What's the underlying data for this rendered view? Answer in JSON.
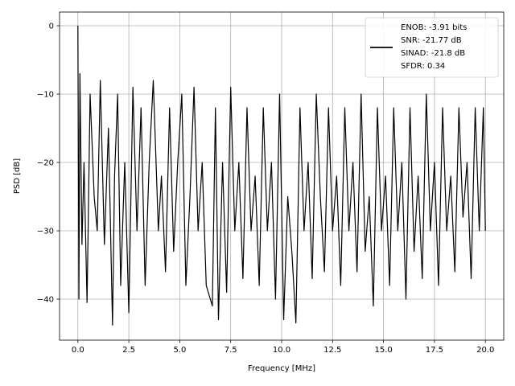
{
  "chart_data": {
    "type": "line",
    "title": "",
    "xlabel": "Frequency [MHz]",
    "ylabel": "PSD [dB]",
    "xlim": [
      -0.9,
      20.9
    ],
    "ylim": [
      -46,
      2
    ],
    "xticks": [
      0.0,
      2.5,
      5.0,
      7.5,
      10.0,
      12.5,
      15.0,
      17.5,
      20.0
    ],
    "xtick_labels": [
      "0.0",
      "2.5",
      "5.0",
      "7.5",
      "10.0",
      "12.5",
      "15.0",
      "17.5",
      "20.0"
    ],
    "yticks": [
      0,
      -10,
      -20,
      -30,
      -40
    ],
    "ytick_labels": [
      "0",
      "−10",
      "−20",
      "−30",
      "−40"
    ],
    "grid": true,
    "legend_position": "top-right",
    "legend": [
      "ENOB: -3.91 bits",
      "SNR: -21.77 dB",
      "SINAD: -21.8 dB",
      "SFDR: 0.34"
    ],
    "series": [
      {
        "color": "#000000",
        "x": [
          0.0,
          0.05,
          0.1,
          0.2,
          0.3,
          0.45,
          0.6,
          0.8,
          0.95,
          1.1,
          1.3,
          1.5,
          1.7,
          1.8,
          1.95,
          2.1,
          2.3,
          2.5,
          2.7,
          2.9,
          3.1,
          3.3,
          3.5,
          3.7,
          3.95,
          4.1,
          4.3,
          4.5,
          4.7,
          4.9,
          5.1,
          5.3,
          5.5,
          5.7,
          5.9,
          6.1,
          6.3,
          6.6,
          6.75,
          6.9,
          7.1,
          7.3,
          7.5,
          7.7,
          7.9,
          8.1,
          8.3,
          8.5,
          8.7,
          8.9,
          9.1,
          9.3,
          9.5,
          9.7,
          9.9,
          10.1,
          10.3,
          10.5,
          10.7,
          10.9,
          11.1,
          11.3,
          11.5,
          11.7,
          11.9,
          12.1,
          12.3,
          12.5,
          12.7,
          12.9,
          13.1,
          13.3,
          13.5,
          13.7,
          13.9,
          14.1,
          14.3,
          14.5,
          14.7,
          14.9,
          15.1,
          15.3,
          15.5,
          15.7,
          15.9,
          16.1,
          16.3,
          16.5,
          16.7,
          16.9,
          17.1,
          17.3,
          17.5,
          17.7,
          17.9,
          18.1,
          18.3,
          18.5,
          18.7,
          18.9,
          19.1,
          19.3,
          19.5,
          19.7,
          19.9,
          20.0
        ],
        "y": [
          0,
          -40,
          -7,
          -32,
          -20,
          -40.5,
          -10,
          -25,
          -30,
          -8,
          -32,
          -15,
          -43.8,
          -22,
          -10,
          -38,
          -20,
          -42,
          -9,
          -30,
          -12,
          -38,
          -20,
          -8,
          -30,
          -22,
          -36,
          -12,
          -33,
          -20,
          -10,
          -38,
          -25,
          -9,
          -30,
          -20,
          -38,
          -41,
          -12,
          -43,
          -20,
          -39,
          -9,
          -30,
          -20,
          -37,
          -12,
          -30,
          -22,
          -38,
          -12,
          -30,
          -20,
          -40,
          -10,
          -43,
          -25,
          -33,
          -43.5,
          -12,
          -30,
          -20,
          -37,
          -10,
          -25,
          -36,
          -12,
          -30,
          -22,
          -38,
          -12,
          -30,
          -20,
          -36,
          -10,
          -33,
          -25,
          -41,
          -12,
          -30,
          -22,
          -38,
          -12,
          -30,
          -20,
          -40,
          -12,
          -33,
          -22,
          -37,
          -10,
          -30,
          -20,
          -38,
          -12,
          -30,
          -22,
          -36,
          -12,
          -28,
          -20,
          -37,
          -12,
          -30,
          -12,
          -30
        ]
      }
    ]
  }
}
